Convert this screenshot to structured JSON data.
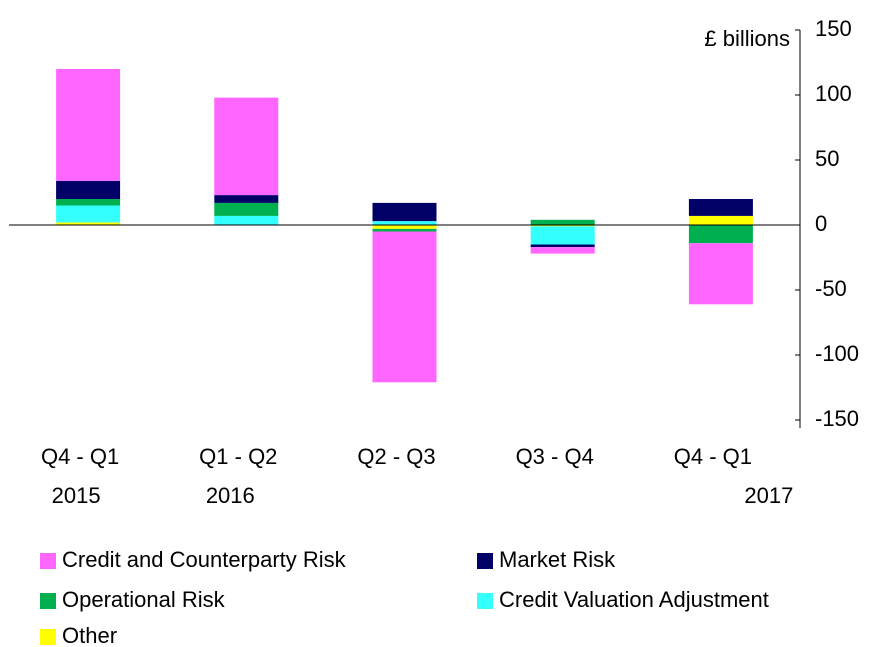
{
  "chart_data": {
    "type": "stacked_bar",
    "y_axis_label": "£ billions",
    "categories": [
      "Q4 -  Q1",
      "Q1 - Q2",
      "Q2 - Q3",
      "Q3 - Q4",
      "Q4 -  Q1"
    ],
    "category_years": [
      "2015",
      "2016",
      null,
      null,
      "2017"
    ],
    "series": [
      {
        "name": "Credit and Counterparty Risk",
        "color": "#ff66ff",
        "values": [
          86,
          75,
          -116,
          -5,
          -47
        ]
      },
      {
        "name": "Market Risk",
        "color": "#000066",
        "values": [
          14,
          6,
          14,
          -2,
          13
        ]
      },
      {
        "name": "Operational Risk",
        "color": "#00b050",
        "values": [
          5,
          10,
          -2,
          4,
          -14
        ]
      },
      {
        "name": "Credit Valuation Adjustment",
        "color": "#33ffff",
        "values": [
          13,
          7,
          3,
          -14,
          0
        ]
      },
      {
        "name": "Other",
        "color": "#ffff00",
        "values": [
          2,
          0,
          -3,
          -1,
          7
        ]
      }
    ],
    "ylim": [
      -150,
      150
    ],
    "yticks": [
      150,
      100,
      50,
      0,
      -50,
      -100,
      -150
    ]
  }
}
